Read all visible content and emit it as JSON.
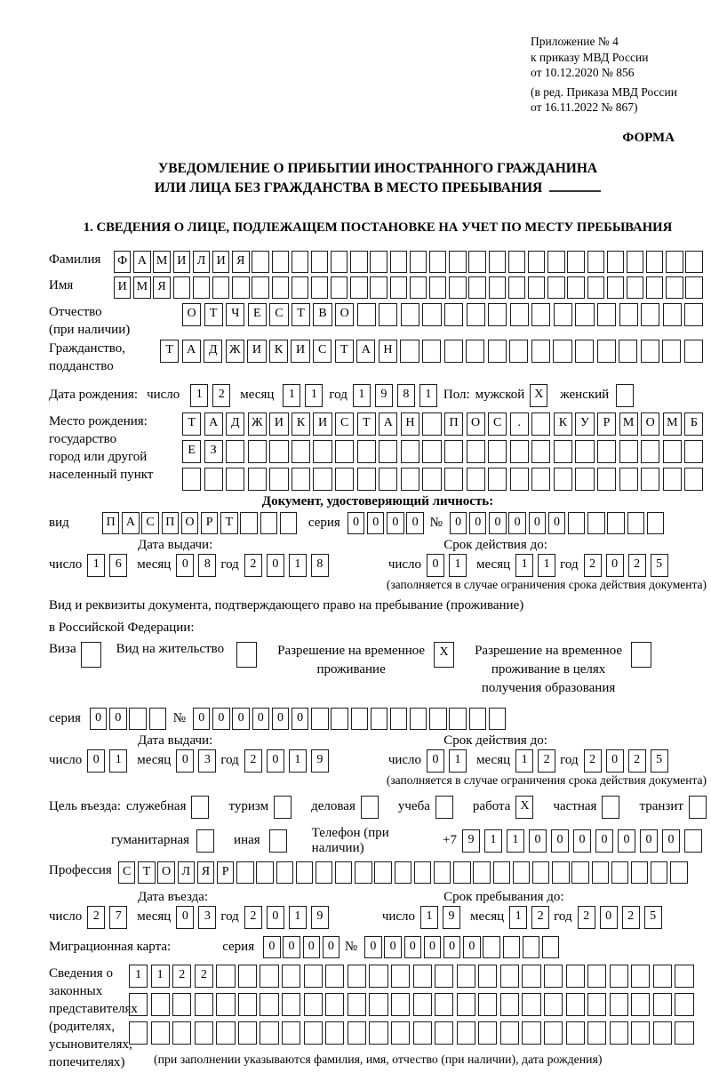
{
  "common": {
    "day": "число",
    "month": "месяц",
    "year": "год",
    "series_label": "серия",
    "number_label": "№"
  },
  "page": {
    "appendix": "Приложение № 4\nк приказу МВД России\nот 10.12.2020 № 856",
    "amendment": "(в ред. Приказа МВД России\nот 16.11.2022 № 867)",
    "form_label": "ФОРМА",
    "title_line1": "УВЕДОМЛЕНИЕ О ПРИБЫТИИ ИНОСТРАННОГО ГРАЖДАНИНА",
    "title_line2": "ИЛИ ЛИЦА БЕЗ ГРАЖДАНСТВА В МЕСТО ПРЕБЫВАНИЯ",
    "section1_heading": "1. СВЕДЕНИЯ О ЛИЦЕ, ПОДЛЕЖАЩЕМ ПОСТАНОВКЕ НА УЧЕТ ПО МЕСТУ ПРЕБЫВАНИЯ"
  },
  "fields": {
    "surname": {
      "label": "Фамилия",
      "value": "ФАМИЛИЯ",
      "len": 30
    },
    "firstname": {
      "label": "Имя",
      "value": "ИМЯ",
      "len": 30
    },
    "patronymic": {
      "label": "Отчество\n(при наличии)",
      "value": "ОТЧЕСТВО",
      "len": 24
    },
    "citizenship": {
      "label": "Гражданство,\nподданство",
      "value": "ТАДЖИКИСТАН",
      "len": 25
    },
    "birth_date": {
      "label": "Дата рождения:",
      "day": {
        "value": "12",
        "len": 2
      },
      "month": {
        "value": "11",
        "len": 2
      },
      "year": {
        "value": "1981",
        "len": 4
      }
    },
    "sex": {
      "label": "Пол:",
      "male_label": "мужской",
      "female_label": "женский",
      "male": {
        "value": "X",
        "len": 1
      },
      "female": {
        "value": "",
        "len": 1
      }
    },
    "birth_place": {
      "label": "Место рождения:\nгосударство\nгород или другой\nнаселенный пункт",
      "row1": {
        "value": "ТАДЖИКИСТАН ПОС. КУРМОМБ",
        "len": 24
      },
      "row2": {
        "value": "ЕЗ",
        "len": 24
      },
      "row3": {
        "value": "",
        "len": 24
      }
    }
  },
  "identity_doc": {
    "heading": "Документ, удостоверяющий личность:",
    "kind_label": "вид",
    "kind": {
      "value": "ПАСПОРТ",
      "len": 10
    },
    "series": {
      "value": "0000",
      "len": 4
    },
    "number": {
      "value": "000000",
      "len": 11
    },
    "issue_heading": "Дата выдачи:",
    "expiry_heading": "Срок действия до:",
    "issue": {
      "day": {
        "value": "16",
        "len": 2
      },
      "month": {
        "value": "08",
        "len": 2
      },
      "year": {
        "value": "2018",
        "len": 4
      }
    },
    "expiry": {
      "day": {
        "value": "01",
        "len": 2
      },
      "month": {
        "value": "11",
        "len": 2
      },
      "year": {
        "value": "2025",
        "len": 4
      }
    },
    "footnote": "(заполняется в случае ограничения срока действия документа)"
  },
  "residence_doc": {
    "intro": "Вид и реквизиты документа, подтверждающего право на пребывание (проживание)",
    "intro2": "в Российской Федерации:",
    "options": [
      {
        "label": "Виза",
        "box": {
          "value": "",
          "len": 1
        }
      },
      {
        "label": "Вид на жительство",
        "box": {
          "value": "",
          "len": 1
        }
      },
      {
        "label": "Разрешение на временное\nпроживание",
        "box": {
          "value": "X",
          "len": 1
        }
      },
      {
        "label": "Разрешение на временное\nпроживание в целях\nполучения образования",
        "box": {
          "value": "",
          "len": 1
        }
      }
    ],
    "series": {
      "value": "00",
      "len": 4
    },
    "number": {
      "value": "000000",
      "len": 16
    },
    "issue_heading": "Дата выдачи:",
    "expiry_heading": "Срок действия до:",
    "issue": {
      "day": {
        "value": "01",
        "len": 2
      },
      "month": {
        "value": "03",
        "len": 2
      },
      "year": {
        "value": "2019",
        "len": 4
      }
    },
    "expiry": {
      "day": {
        "value": "01",
        "len": 2
      },
      "month": {
        "value": "12",
        "len": 2
      },
      "year": {
        "value": "2025",
        "len": 4
      }
    },
    "footnote": "(заполняется в случае ограничения срока действия документа)"
  },
  "visit": {
    "purpose_label": "Цель въезда:",
    "purpose_options": [
      {
        "label": "служебная",
        "box": {
          "value": "",
          "len": 1
        }
      },
      {
        "label": "туризм",
        "box": {
          "value": "",
          "len": 1
        }
      },
      {
        "label": "деловая",
        "box": {
          "value": "",
          "len": 1
        }
      },
      {
        "label": "учеба",
        "box": {
          "value": "",
          "len": 1
        }
      },
      {
        "label": "работа",
        "box": {
          "value": "X",
          "len": 1
        }
      },
      {
        "label": "частная",
        "box": {
          "value": "",
          "len": 1
        }
      },
      {
        "label": "транзит",
        "box": {
          "value": "",
          "len": 1
        }
      },
      {
        "label": "гуманитарная",
        "box": {
          "value": "",
          "len": 1
        }
      },
      {
        "label": "иная",
        "box": {
          "value": "",
          "len": 1
        }
      }
    ],
    "phone_label": "Телефон (при наличии)",
    "phone_prefix": "+7",
    "phone": {
      "value": "9110000000",
      "len": 11
    },
    "profession_label": "Профессия",
    "profession": {
      "value": "СТОЛЯР",
      "len": 29
    },
    "entry_heading": "Дата въезда:",
    "stay_heading": "Срок пребывания до:",
    "entry": {
      "day": {
        "value": "27",
        "len": 2
      },
      "month": {
        "value": "03",
        "len": 2
      },
      "year": {
        "value": "2019",
        "len": 4
      }
    },
    "stay": {
      "day": {
        "value": "19",
        "len": 2
      },
      "month": {
        "value": "12",
        "len": 2
      },
      "year": {
        "value": "2025",
        "len": 4
      }
    }
  },
  "migration_card": {
    "label": "Миграционная карта:",
    "series": {
      "value": "0000",
      "len": 4
    },
    "number": {
      "value": "000000",
      "len": 10
    }
  },
  "representatives": {
    "label": "Сведения о\nзаконных\nпредставителях\n(родителях,\nусыновителях,\nпопечителях)",
    "row1": {
      "value": "1122",
      "len": 26
    },
    "row2": {
      "value": "",
      "len": 26
    },
    "row3": {
      "value": "",
      "len": 26
    },
    "footnote": "(при заполнении указываются фамилия, имя, отчество (при наличии), дата рождения)"
  }
}
